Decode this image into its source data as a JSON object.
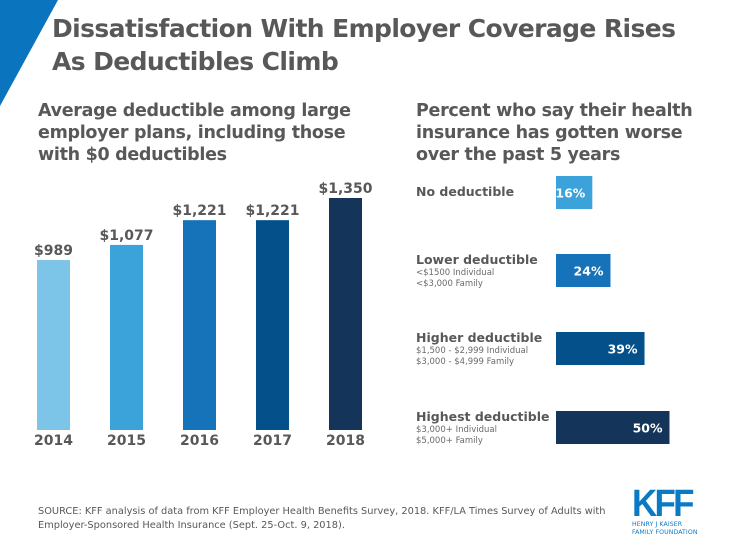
{
  "header": {
    "title": "Dissatisfaction With Employer Coverage Rises As Deductibles Climb",
    "accent_color": "#0a75be"
  },
  "chart_data": [
    {
      "type": "bar",
      "title": "Average deductible among large employer plans, including those with $0 deductibles",
      "categories": [
        "2014",
        "2015",
        "2016",
        "2017",
        "2018"
      ],
      "values": [
        989,
        1077,
        1221,
        1221,
        1350
      ],
      "value_labels": [
        "$989",
        "$1,077",
        "$1,221",
        "$1,221",
        "$1,350"
      ],
      "colors": [
        "#7dc5e8",
        "#3ca2da",
        "#1672b9",
        "#03508a",
        "#14345a"
      ],
      "xlabel": "",
      "ylabel": "",
      "ylim": [
        0,
        1350
      ],
      "grid": false
    },
    {
      "type": "bar",
      "orientation": "horizontal",
      "title": "Percent who say their health insurance has gotten worse over the past 5 years",
      "categories": [
        "No deductible",
        "Lower deductible",
        "Higher deductible",
        "Highest deductible"
      ],
      "category_details": [
        [],
        [
          "<$1500 Individual",
          "<$3,000 Family"
        ],
        [
          "$1,500 - $2,999 Individual",
          "$3,000 - $4,999 Family"
        ],
        [
          "$3,000+ Individual",
          "$5,000+ Family"
        ]
      ],
      "values": [
        16,
        24,
        39,
        50
      ],
      "value_labels": [
        "16%",
        "24%",
        "39%",
        "50%"
      ],
      "colors": [
        "#3ca2da",
        "#1672b9",
        "#03508a",
        "#14345a"
      ],
      "xlim": [
        0,
        100
      ],
      "grid": false
    }
  ],
  "footer": {
    "source": "SOURCE: KFF analysis of data from KFF Employer Health Benefits Survey, 2018. KFF/LA Times Survey of Adults with Employer-Sponsored Health Insurance (Sept. 25-Oct. 9, 2018).",
    "logo_text": "KFF",
    "logo_org_line1": "HENRY J KAISER",
    "logo_org_line2": "FAMILY FOUNDATION"
  }
}
